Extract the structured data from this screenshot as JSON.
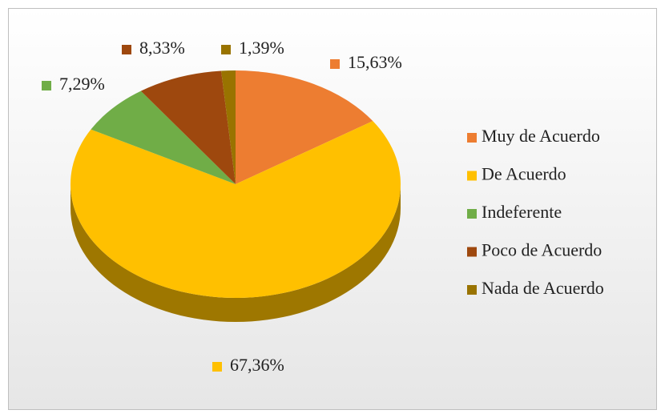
{
  "chart_data": {
    "type": "pie",
    "categories": [
      "Muy de Acuerdo",
      "De Acuerdo",
      "Indeferente",
      "Poco de Acuerdo",
      "Nada de Acuerdo"
    ],
    "values": [
      15.63,
      67.36,
      7.29,
      8.33,
      1.39
    ],
    "value_labels": [
      "15,63%",
      "67,36%",
      "7,29%",
      "8,33%",
      "1,39%"
    ],
    "colors": [
      "#ED7D31",
      "#FFC000",
      "#70AD47",
      "#9E480E",
      "#997300"
    ],
    "legend": "right"
  }
}
